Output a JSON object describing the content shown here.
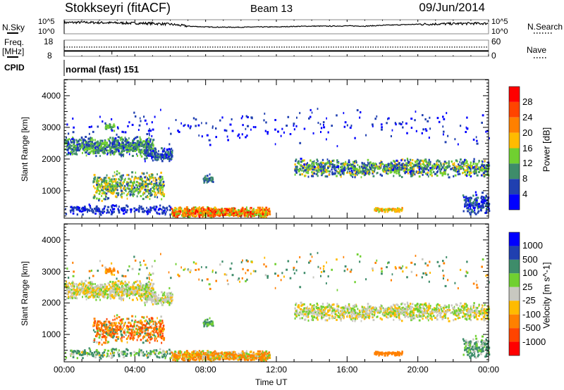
{
  "header": {
    "station": "Stokkseyri (fitACF)",
    "beam": "Beam 13",
    "date": "09/Jun/2014"
  },
  "noise_panel": {
    "left_label": "N.Sky",
    "right_label": "N.Search",
    "left_top": "10^5",
    "left_bottom": "10^0",
    "right_top": "10^5",
    "right_bottom": "10^0",
    "sky_log10": [
      3.9,
      4.0,
      3.9,
      3.8,
      3.7,
      3.6,
      3.3,
      2.6,
      2.3,
      2.2,
      2.2,
      2.3,
      2.3,
      2.5,
      2.6,
      2.6,
      2.7,
      2.6,
      2.9,
      3.1,
      3.3,
      3.4,
      3.5,
      3.6,
      3.6
    ],
    "search_log10": [
      3.9,
      4.0,
      3.9,
      3.8,
      3.7,
      3.6,
      3.3,
      2.6,
      2.3,
      2.2,
      2.2,
      2.3,
      2.3,
      2.5,
      2.6,
      2.6,
      2.7,
      2.6,
      2.9,
      3.1,
      3.3,
      3.4,
      3.5,
      3.6,
      3.6
    ]
  },
  "freq_panel": {
    "left_label_1": "Freq.",
    "left_label_2": "[MHz]",
    "right_label": "Nave",
    "left_top": "18",
    "left_bottom": "8",
    "right_top": "60",
    "right_bottom": "0",
    "freq_mhz": 11,
    "nave": 33
  },
  "cpid": {
    "label": "CPID",
    "value": "normal (fast) 151"
  },
  "chart_data": [
    {
      "type": "heatmap",
      "name": "power",
      "ylabel": "Slant Range [km]",
      "xlabel": "Time UT",
      "xlim": [
        0,
        24
      ],
      "ylim": [
        130,
        4510
      ],
      "yticks": [
        "1000",
        "2000",
        "3000",
        "4000"
      ],
      "xticks": [
        "00:00",
        "04:00",
        "08:00",
        "12:00",
        "16:00",
        "20:00",
        "00:00"
      ],
      "colorbar": {
        "label": "Power [dB]",
        "ticks": [
          "28",
          "24",
          "20",
          "16",
          "12",
          "8",
          "4"
        ],
        "colors": [
          "#ff0000",
          "#ff4400",
          "#ff8000",
          "#ffbb00",
          "#70d030",
          "#3e8c6a",
          "#2040b0",
          "#0000ff"
        ]
      },
      "regions": [
        {
          "t": [
            0.0,
            5.0
          ],
          "r": [
            2100,
            2750
          ],
          "p": [
            3,
            16
          ],
          "v": [
            -60,
            60
          ],
          "n": 700
        },
        {
          "t": [
            4.5,
            6.1
          ],
          "r": [
            1950,
            2400
          ],
          "p": [
            2,
            10
          ],
          "v": [
            -40,
            40
          ],
          "n": 160
        },
        {
          "t": [
            1.6,
            5.6
          ],
          "r": [
            700,
            1650
          ],
          "p": [
            6,
            20
          ],
          "v": [
            -700,
            200
          ],
          "n": 500
        },
        {
          "t": [
            6.0,
            11.6
          ],
          "r": [
            180,
            520
          ],
          "p": [
            12,
            32
          ],
          "v": [
            -300,
            80
          ],
          "n": 650
        },
        {
          "t": [
            0.0,
            6.0
          ],
          "r": [
            250,
            600
          ],
          "p": [
            2,
            8
          ],
          "v": [
            -40,
            300
          ],
          "n": 200
        },
        {
          "t": [
            13.0,
            24.0
          ],
          "r": [
            1450,
            2050
          ],
          "p": [
            3,
            18
          ],
          "v": [
            -60,
            60
          ],
          "n": 1100
        },
        {
          "t": [
            17.5,
            19.1
          ],
          "r": [
            360,
            500
          ],
          "p": [
            14,
            22
          ],
          "v": [
            -300,
            -100
          ],
          "n": 90
        },
        {
          "t": [
            22.5,
            24.0
          ],
          "r": [
            250,
            1000
          ],
          "p": [
            2,
            10
          ],
          "v": [
            -20,
            300
          ],
          "n": 150
        },
        {
          "t": [
            7.8,
            8.4
          ],
          "r": [
            1250,
            1550
          ],
          "p": [
            6,
            12
          ],
          "v": [
            30,
            200
          ],
          "n": 40
        },
        {
          "t": [
            2.3,
            2.8
          ],
          "r": [
            2900,
            3150
          ],
          "p": [
            8,
            16
          ],
          "v": [
            -200,
            -50
          ],
          "n": 30
        },
        {
          "t": [
            0.0,
            24.0
          ],
          "r": [
            2400,
            3700
          ],
          "p": [
            1,
            6
          ],
          "v": [
            -300,
            300
          ],
          "n": 220
        }
      ]
    },
    {
      "type": "heatmap",
      "name": "velocity",
      "ylabel": "Slant Range [km]",
      "xlabel": "Time UT",
      "xlim": [
        0,
        24
      ],
      "ylim": [
        130,
        4510
      ],
      "yticks": [
        "1000",
        "2000",
        "3000",
        "4000"
      ],
      "xticks": [
        "00:00",
        "04:00",
        "08:00",
        "12:00",
        "16:00",
        "20:00",
        "00:00"
      ],
      "colorbar": {
        "label": "Velocity [m s^-1]",
        "ticks": [
          "1000",
          "500",
          "100",
          "25",
          "-25",
          "-100",
          "-500",
          "-1000"
        ],
        "colors": [
          "#0000ff",
          "#2040b0",
          "#3e8c6a",
          "#70d030",
          "#c8c8c0",
          "#ffbb00",
          "#ff8000",
          "#ff4400",
          "#ff0000"
        ]
      }
    }
  ]
}
